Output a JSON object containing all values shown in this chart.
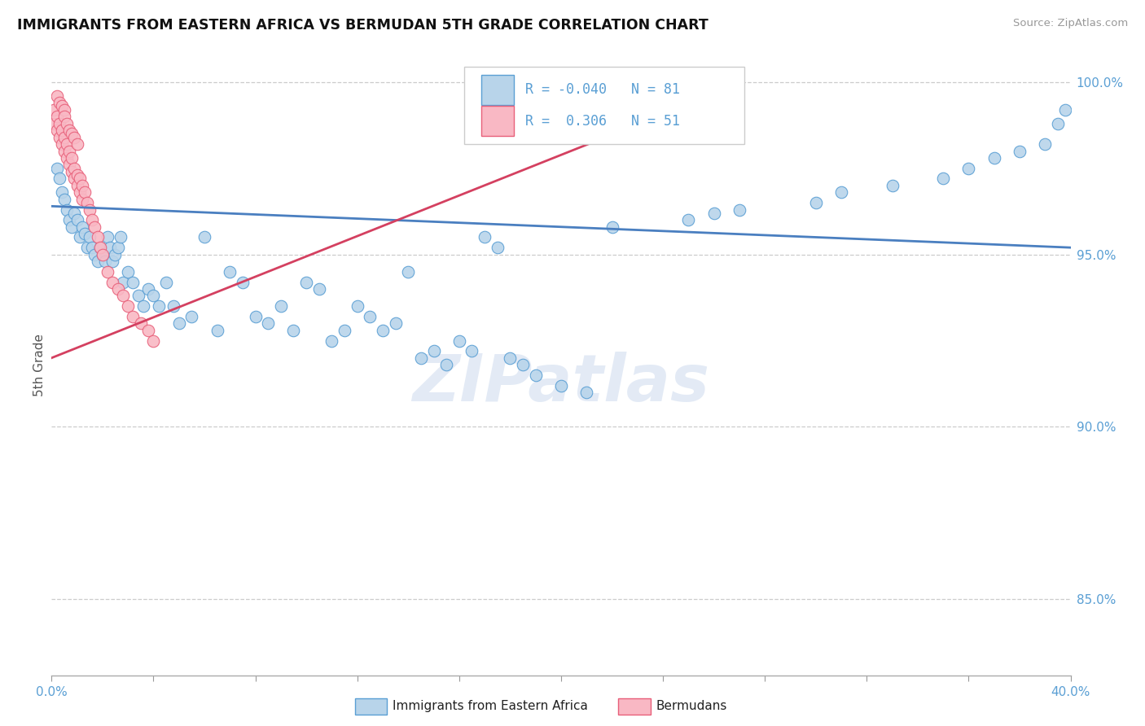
{
  "title": "IMMIGRANTS FROM EASTERN AFRICA VS BERMUDAN 5TH GRADE CORRELATION CHART",
  "source_text": "Source: ZipAtlas.com",
  "ylabel": "5th Grade",
  "xlim": [
    0.0,
    0.4
  ],
  "ylim": [
    0.828,
    1.008
  ],
  "xticks": [
    0.0,
    0.04,
    0.08,
    0.12,
    0.16,
    0.2,
    0.24,
    0.28,
    0.32,
    0.36,
    0.4
  ],
  "xticklabels": [
    "0.0%",
    "",
    "",
    "",
    "",
    "",
    "",
    "",
    "",
    "",
    "40.0%"
  ],
  "yticks_right": [
    0.85,
    0.9,
    0.95,
    1.0
  ],
  "ytick_labels_right": [
    "85.0%",
    "90.0%",
    "95.0%",
    "100.0%"
  ],
  "blue_fill": "#b8d4ea",
  "pink_fill": "#f9b8c4",
  "blue_edge": "#5a9fd4",
  "pink_edge": "#e8607a",
  "blue_line_color": "#4a7fc0",
  "pink_line_color": "#d44060",
  "R_blue": -0.04,
  "N_blue": 81,
  "R_pink": 0.306,
  "N_pink": 51,
  "legend_label_blue": "Immigrants from Eastern Africa",
  "legend_label_pink": "Bermudans",
  "watermark": "ZIPatlas",
  "background_color": "#ffffff",
  "blue_scatter_x": [
    0.002,
    0.003,
    0.004,
    0.005,
    0.006,
    0.007,
    0.008,
    0.009,
    0.01,
    0.011,
    0.012,
    0.013,
    0.014,
    0.015,
    0.016,
    0.017,
    0.018,
    0.019,
    0.02,
    0.021,
    0.022,
    0.023,
    0.024,
    0.025,
    0.026,
    0.027,
    0.028,
    0.03,
    0.032,
    0.034,
    0.036,
    0.038,
    0.04,
    0.042,
    0.045,
    0.048,
    0.05,
    0.055,
    0.06,
    0.065,
    0.07,
    0.075,
    0.08,
    0.085,
    0.09,
    0.095,
    0.1,
    0.105,
    0.11,
    0.115,
    0.12,
    0.125,
    0.13,
    0.135,
    0.14,
    0.145,
    0.15,
    0.155,
    0.16,
    0.165,
    0.17,
    0.175,
    0.18,
    0.185,
    0.19,
    0.2,
    0.21,
    0.22,
    0.25,
    0.26,
    0.27,
    0.3,
    0.31,
    0.33,
    0.35,
    0.36,
    0.37,
    0.38,
    0.39,
    0.395,
    0.398
  ],
  "blue_scatter_y": [
    0.975,
    0.972,
    0.968,
    0.966,
    0.963,
    0.96,
    0.958,
    0.962,
    0.96,
    0.955,
    0.958,
    0.956,
    0.952,
    0.955,
    0.952,
    0.95,
    0.948,
    0.952,
    0.95,
    0.948,
    0.955,
    0.952,
    0.948,
    0.95,
    0.952,
    0.955,
    0.942,
    0.945,
    0.942,
    0.938,
    0.935,
    0.94,
    0.938,
    0.935,
    0.942,
    0.935,
    0.93,
    0.932,
    0.955,
    0.928,
    0.945,
    0.942,
    0.932,
    0.93,
    0.935,
    0.928,
    0.942,
    0.94,
    0.925,
    0.928,
    0.935,
    0.932,
    0.928,
    0.93,
    0.945,
    0.92,
    0.922,
    0.918,
    0.925,
    0.922,
    0.955,
    0.952,
    0.92,
    0.918,
    0.915,
    0.912,
    0.91,
    0.958,
    0.96,
    0.962,
    0.963,
    0.965,
    0.968,
    0.97,
    0.972,
    0.975,
    0.978,
    0.98,
    0.982,
    0.988,
    0.992
  ],
  "pink_scatter_x": [
    0.001,
    0.001,
    0.002,
    0.002,
    0.003,
    0.003,
    0.004,
    0.004,
    0.005,
    0.005,
    0.006,
    0.006,
    0.007,
    0.007,
    0.008,
    0.008,
    0.009,
    0.009,
    0.01,
    0.01,
    0.011,
    0.011,
    0.012,
    0.012,
    0.013,
    0.014,
    0.015,
    0.016,
    0.017,
    0.018,
    0.019,
    0.02,
    0.022,
    0.024,
    0.026,
    0.028,
    0.03,
    0.032,
    0.035,
    0.038,
    0.04,
    0.002,
    0.003,
    0.004,
    0.005,
    0.005,
    0.006,
    0.007,
    0.008,
    0.009,
    0.01
  ],
  "pink_scatter_y": [
    0.992,
    0.988,
    0.99,
    0.986,
    0.988,
    0.984,
    0.986,
    0.982,
    0.984,
    0.98,
    0.982,
    0.978,
    0.98,
    0.976,
    0.978,
    0.974,
    0.975,
    0.972,
    0.973,
    0.97,
    0.972,
    0.968,
    0.97,
    0.966,
    0.968,
    0.965,
    0.963,
    0.96,
    0.958,
    0.955,
    0.952,
    0.95,
    0.945,
    0.942,
    0.94,
    0.938,
    0.935,
    0.932,
    0.93,
    0.928,
    0.925,
    0.996,
    0.994,
    0.993,
    0.992,
    0.99,
    0.988,
    0.986,
    0.985,
    0.984,
    0.982
  ],
  "blue_trend_x": [
    0.0,
    0.4
  ],
  "blue_trend_y": [
    0.964,
    0.952
  ],
  "pink_trend_x": [
    0.0,
    0.265
  ],
  "pink_trend_y": [
    0.92,
    0.998
  ]
}
